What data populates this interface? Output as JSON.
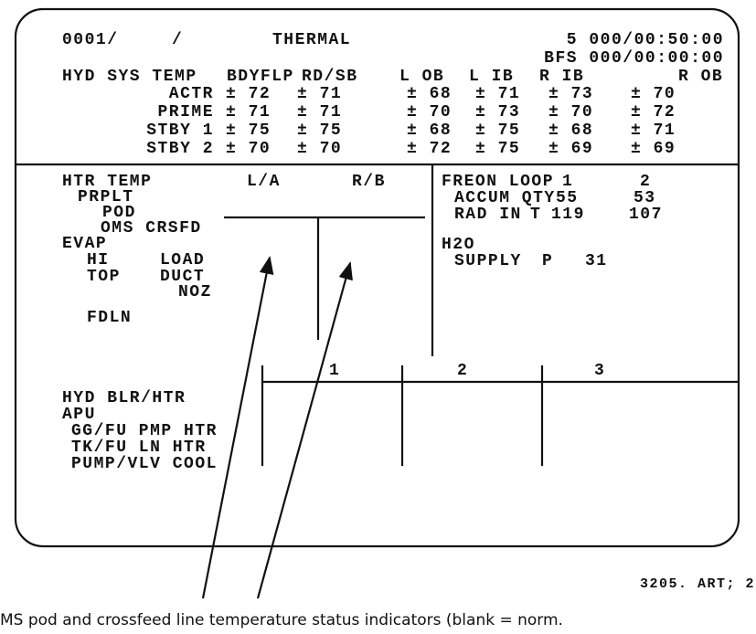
{
  "header": {
    "display_id": "0001/",
    "slash": "/",
    "title": "THERMAL",
    "time_1": "5 000/00:50:00",
    "time_2": "BFS 000/00:00:00"
  },
  "hyd_sys_temp": {
    "label": "HYD SYS TEMP",
    "columns": [
      "BDYFLP",
      "RD/SB",
      "L OB",
      "L IB",
      "R IB",
      "R OB"
    ],
    "rows": [
      {
        "label": "ACTR",
        "values": [
          "± 72",
          "± 71",
          "± 68",
          "± 71",
          "± 73",
          "± 70"
        ]
      },
      {
        "label": "PRIME",
        "values": [
          "± 71",
          "± 71",
          "± 70",
          "± 73",
          "± 70",
          "± 72"
        ]
      },
      {
        "label": "STBY 1",
        "values": [
          "± 75",
          "± 75",
          "± 68",
          "± 75",
          "± 68",
          "± 71"
        ]
      },
      {
        "label": "STBY 2",
        "values": [
          "± 70",
          "± 70",
          "± 72",
          "± 75",
          "± 69",
          "± 69"
        ]
      }
    ]
  },
  "htr_temp": {
    "label": "HTR TEMP",
    "col_a": "L/A",
    "col_b": "R/B",
    "prplt": "PRPLT",
    "pod": "POD",
    "oms_crsfd": "OMS CRSFD",
    "evap": "EVAP",
    "hi": "HI",
    "load": "LOAD",
    "top": "TOP",
    "duct": "DUCT",
    "noz": "NOZ",
    "fdln": "FDLN"
  },
  "freon": {
    "label": "FREON LOOP",
    "loop_1": "1",
    "loop_2": "2",
    "accum_qty": "ACCUM QTY",
    "accum_1": "55",
    "accum_2": "53",
    "rad_in": "RAD IN",
    "rad_t": "T",
    "rad_1": "119",
    "rad_2": "107",
    "h2o": "H2O",
    "supply": "SUPPLY",
    "supply_p": "P",
    "supply_val": "31"
  },
  "apu": {
    "hyd_blr_htr": "HYD BLR/HTR",
    "apu": "APU",
    "gg_fu": "GG/FU PMP HTR",
    "tk_fu": "TK/FU LN HTR",
    "pump_vlv": "PUMP/VLV COOL",
    "col_1": "1",
    "col_2": "2",
    "col_3": "3"
  },
  "footer": {
    "figure_id": "3205. ART; 2",
    "caption": "MS pod and crossfeed line temperature status indicators (blank = norm."
  }
}
